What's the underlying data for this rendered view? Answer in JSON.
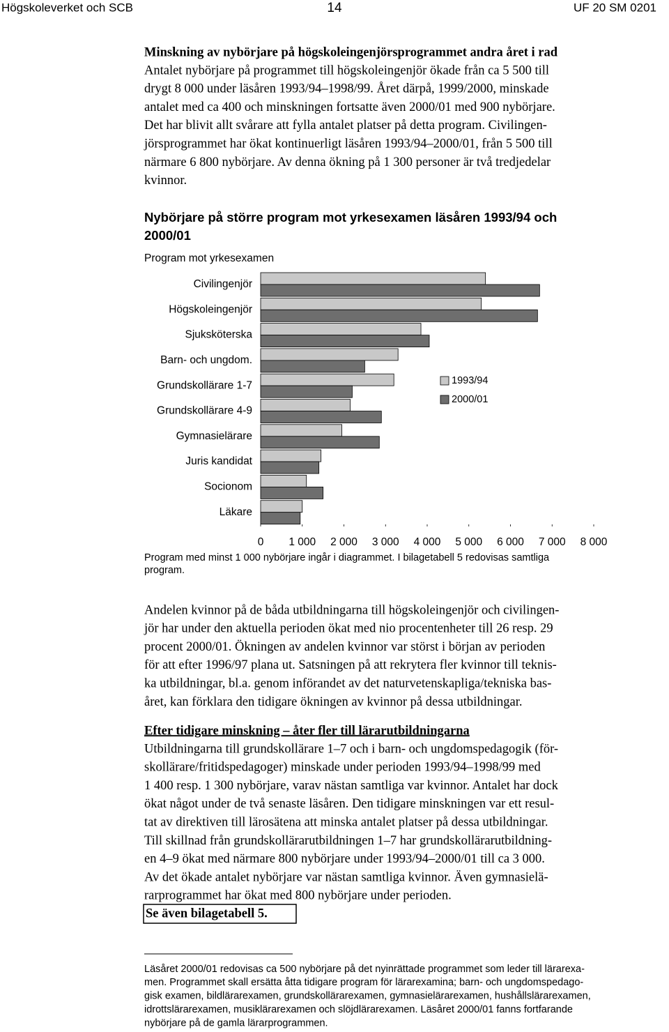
{
  "header": {
    "left": "Högskoleverket och SCB",
    "page": "14",
    "right": "UF 20 SM 0201"
  },
  "section1": {
    "heading": "Minskning av nybörjare på högskoleingenjörsprogrammet andra året i rad",
    "lines": [
      "Antalet nybörjare på programmet till högskoleingenjör ökade från ca 5 500 till",
      "drygt 8 000 under läsåren 1993/94–1998/99. Året därpå, 1999/2000, minskade",
      "antalet med ca 400 och minskningen fortsatte även 2000/01 med 900 nybörjare.",
      "Det har blivit allt svårare att fylla antalet platser på detta program. Civilingen-",
      "jörsprogrammet har ökat kontinuerligt läsåren 1993/94–2000/01, från 5 500 till",
      "närmare 6 800 nybörjare. Av denna ökning på 1 300 personer är två tredjedelar",
      "kvinnor."
    ]
  },
  "chart_data": {
    "type": "bar",
    "orientation": "horizontal",
    "title": [
      "Nybörjare på större program mot yrkesexamen läsåren 1993/94 och",
      "2000/01"
    ],
    "category_axis_label": "Program mot yrkesexamen",
    "categories": [
      "Civilingenjör",
      "Högskoleingenjör",
      "Sjuksköterska",
      "Barn- och ungdom.",
      "Grundskollärare 1-7",
      "Grundskollärare 4-9",
      "Gymnasielärare",
      "Juris kandidat",
      "Socionom",
      "Läkare"
    ],
    "series": [
      {
        "name": "1993/94",
        "color": "#c8c8c8",
        "values": [
          5400,
          5300,
          3850,
          3300,
          3200,
          2150,
          1950,
          1450,
          1100,
          1000
        ]
      },
      {
        "name": "2000/01",
        "color": "#6e6e6e",
        "values": [
          6700,
          6650,
          4050,
          2500,
          2200,
          2900,
          2850,
          1400,
          1500,
          950
        ]
      }
    ],
    "xlim": [
      0,
      8000
    ],
    "xticks": [
      0,
      {
        "value": 1000,
        "label": "1 000"
      },
      {
        "value": 2000,
        "label": "2 000"
      },
      {
        "value": 3000,
        "label": "3 000"
      },
      {
        "value": 4000,
        "label": "4 000"
      },
      {
        "value": 5000,
        "label": "5 000"
      },
      {
        "value": 6000,
        "label": "6 000"
      },
      {
        "value": 7000,
        "label": "7 000"
      },
      {
        "value": 8000,
        "label": "8 000"
      }
    ],
    "note": [
      "Program med minst 1 000 nybörjare ingår i diagrammet. I bilagetabell 5 redovisas samtliga",
      "program."
    ]
  },
  "paragraph2": {
    "lines": [
      "Andelen kvinnor på de båda utbildningarna till högskoleingenjör och civilingen-",
      "jör har under den aktuella perioden ökat med nio procentenheter till 26 resp. 29",
      "procent 2000/01. Ökningen av andelen kvinnor var störst i början av perioden",
      "för att efter 1996/97 plana ut. Satsningen på att rekrytera fler kvinnor till teknis-",
      "ka utbildningar, bl.a. genom införandet av det naturvetenskapliga/tekniska bas-",
      "året, kan förklara den tidigare ökningen av kvinnor på dessa utbildningar."
    ]
  },
  "section2": {
    "heading": "Efter tidigare minskning – åter fler till lärarutbildningarna",
    "lines": [
      "Utbildningarna till grundskollärare 1–7 och i barn- och ungdomspedagogik (för-",
      "skollärare/fritidspedagoger) minskade under perioden 1993/94–1998/99 med",
      "1 400 resp. 1 300 nybörjare, varav nästan samtliga var kvinnor. Antalet har dock",
      "ökat något under de två senaste läsåren. Den tidigare minskningen var ett resul-",
      "tat av direktiven till lärosätena att minska antalet platser på dessa utbildningar.",
      "Till skillnad från grundskollärarutbildningen 1–7 har grundskollärarutbildning-",
      "en 4–9 ökat med närmare 800 nybörjare under 1993/94–2000/01 till ca 3 000.",
      "Av det ökade antalet nybörjare var nästan samtliga kvinnor. Även gymnasielä-",
      "rarprogrammet har ökat med 800 nybörjare under perioden."
    ],
    "link": "Se även bilagetabell 5."
  },
  "footnote": {
    "lines": [
      "Läsåret 2000/01 redovisas ca 500 nybörjare på det nyinrättade programmet som leder till lärarexa-",
      "men. Programmet skall ersätta åtta tidigare program för lärarexamina; barn- och ungdomspedago-",
      "gisk examen, bildlärarexamen, grundskollärarexamen, gymnasielärarexamen, hushållslärarexamen,",
      "idrottslärarexamen, musiklärarexamen och slöjdlärarexamen. Läsåret 2000/01 fanns fortfarande",
      "nybörjare på de gamla lärarprogrammen."
    ]
  }
}
